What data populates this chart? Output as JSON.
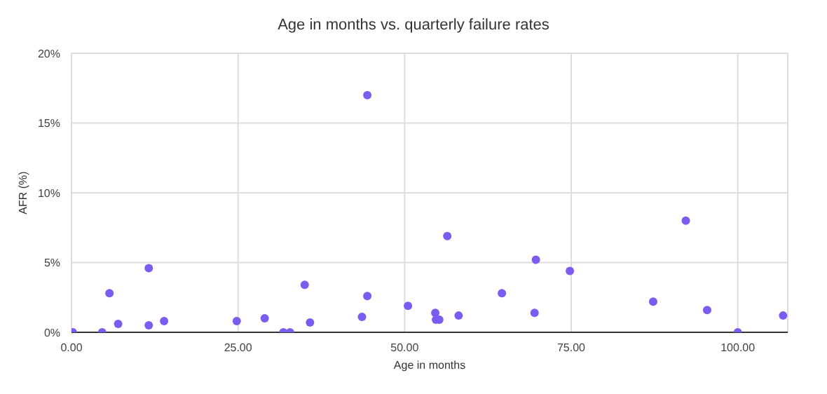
{
  "chart_data": {
    "type": "scatter",
    "title": "Age in months vs. quarterly failure rates",
    "xlabel": "Age in months",
    "ylabel": "AFR (%)",
    "x": [
      0.2,
      4.6,
      5.7,
      7,
      11.6,
      11.6,
      13.9,
      24.8,
      29,
      31.8,
      32.8,
      35,
      35.8,
      43.6,
      44.4,
      44.4,
      50.5,
      54.6,
      54.7,
      55.2,
      56.4,
      58.1,
      64.6,
      69.5,
      69.7,
      74.8,
      87.3,
      92.2,
      95.4,
      100,
      106.8
    ],
    "series": [
      {
        "color": "#7b5cf0",
        "values": [
          0,
          0,
          2.8,
          0.6,
          4.6,
          0.5,
          0.8,
          0.8,
          1.0,
          0,
          0,
          3.4,
          0.7,
          1.1,
          17,
          2.6,
          1.9,
          1.4,
          0.9,
          0.9,
          6.9,
          1.2,
          2.8,
          1.4,
          5.2,
          4.4,
          2.2,
          8.0,
          1.6,
          0,
          1.2
        ]
      }
    ],
    "xlim": [
      0,
      107.5
    ],
    "ylim": [
      0,
      20
    ],
    "xticks": [
      {
        "value": 0,
        "label": "0.00"
      },
      {
        "value": 25,
        "label": "25.00"
      },
      {
        "value": 50,
        "label": "50.00"
      },
      {
        "value": 75,
        "label": "75.00"
      },
      {
        "value": 100,
        "label": "100.00"
      }
    ],
    "yticks": [
      {
        "value": 0,
        "label": "0%"
      },
      {
        "value": 5,
        "label": "5%"
      },
      {
        "value": 10,
        "label": "10%"
      },
      {
        "value": 15,
        "label": "15%"
      },
      {
        "value": 20,
        "label": "20%"
      }
    ],
    "grid": true,
    "marker": "circle"
  }
}
